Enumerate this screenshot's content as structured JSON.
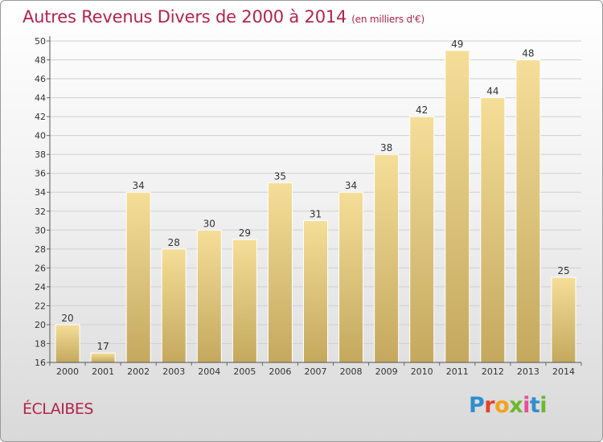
{
  "header": {
    "title": "Autres Revenus Divers de 2000 à 2014",
    "unit": "(en milliers d'€)"
  },
  "footer": {
    "commune": "ÉCLAIBES",
    "logo_letters": [
      "P",
      "r",
      "o",
      "x",
      "i",
      "t",
      "i"
    ],
    "logo_colors": [
      "#2f8ed0",
      "#e3412b",
      "#f2a21c",
      "#6cb82f",
      "#e84f9a",
      "#2f8ed0",
      "#6cb82f"
    ]
  },
  "colors": {
    "title": "#b3234d",
    "bar_light": "#f5de98",
    "bar_dark": "#c4a85e",
    "grid": "#d0d0d0"
  },
  "chart_data": {
    "type": "bar",
    "title": "Autres Revenus Divers de 2000 à 2014",
    "categories": [
      "2000",
      "2001",
      "2002",
      "2003",
      "2004",
      "2005",
      "2006",
      "2007",
      "2008",
      "2009",
      "2010",
      "2011",
      "2012",
      "2013",
      "2014"
    ],
    "values": [
      20,
      17,
      34,
      28,
      30,
      29,
      35,
      31,
      34,
      38,
      42,
      49,
      44,
      48,
      25
    ],
    "ylim": [
      16,
      50
    ],
    "yticks": [
      16,
      18,
      20,
      22,
      24,
      26,
      28,
      30,
      32,
      34,
      36,
      38,
      40,
      42,
      44,
      46,
      48,
      50
    ],
    "grid": true,
    "xlabel": "",
    "ylabel": ""
  }
}
